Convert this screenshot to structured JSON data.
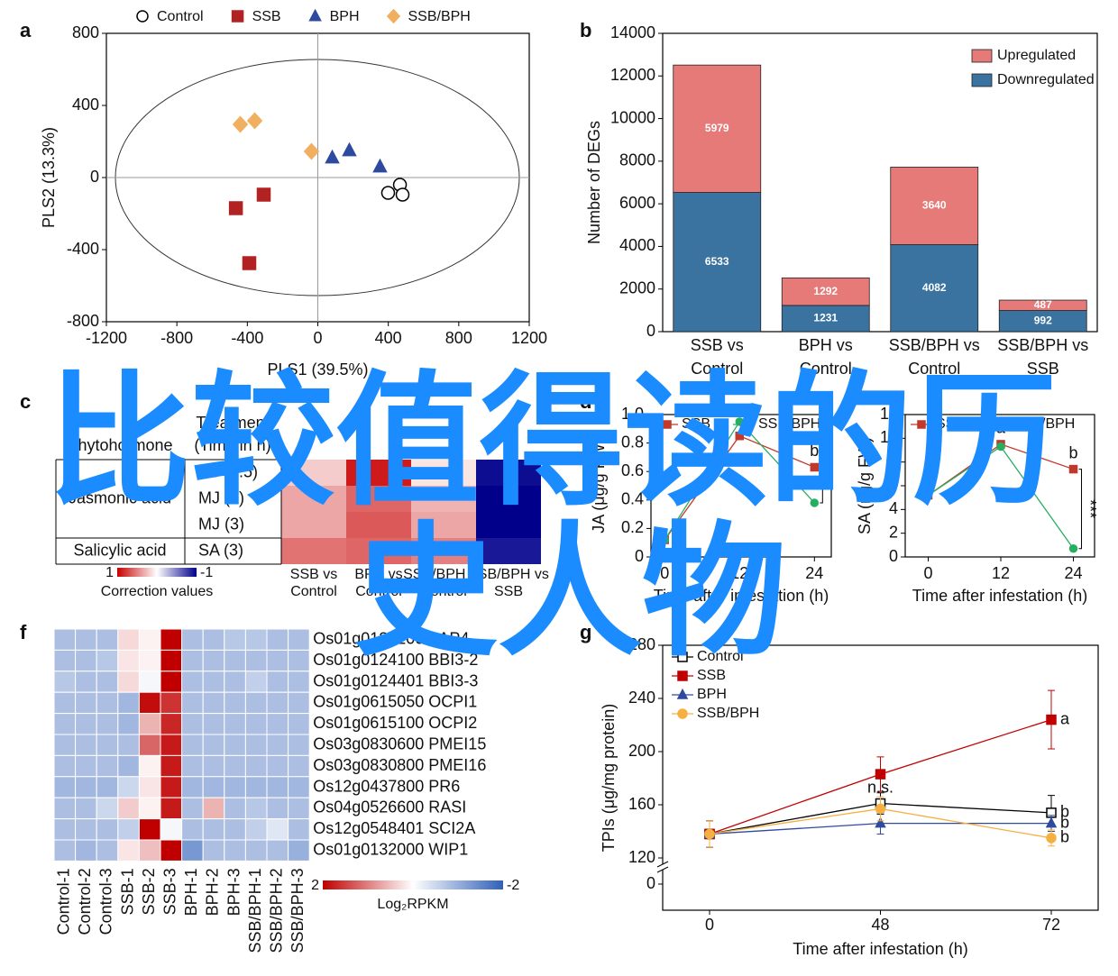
{
  "chart_data": [
    {
      "panel": "a",
      "type": "scatter",
      "xlabel": "PLS1 (39.5%)",
      "ylabel": "PLS2 (13.3%)",
      "xlim": [
        -1200,
        1200
      ],
      "ylim": [
        -800,
        800
      ],
      "xticks": [
        -1200,
        -800,
        -400,
        0,
        400,
        800,
        1200
      ],
      "yticks": [
        -800,
        -400,
        0,
        400,
        800
      ],
      "zero_lines": true,
      "legend": "top",
      "series": [
        {
          "name": "Control",
          "color": "#000000",
          "marker": "circle",
          "filled": false,
          "x": [
            466,
            399,
            481
          ],
          "values": [
            -40,
            -85,
            -95
          ]
        },
        {
          "name": "SSB",
          "color": "#b22222",
          "marker": "square",
          "filled": true,
          "x": [
            -307,
            -465,
            -389
          ],
          "values": [
            -95,
            -170,
            -475
          ]
        },
        {
          "name": "BPH",
          "color": "#2e4a9e",
          "marker": "triangle",
          "filled": true,
          "x": [
            82,
            179,
            353
          ],
          "values": [
            110,
            150,
            60
          ]
        },
        {
          "name": "SSB/BPH",
          "color": "#f0b060",
          "marker": "diamond",
          "filled": true,
          "x": [
            -440,
            -358,
            -36
          ],
          "values": [
            295,
            315,
            145
          ]
        }
      ]
    },
    {
      "panel": "b",
      "type": "bar",
      "stacked": true,
      "ylabel": "Number of DEGs",
      "categories": [
        "SSB vs Control",
        "BPH vs Control",
        "SSB/BPH vs Control",
        "SSB/BPH vs SSB"
      ],
      "ylim": [
        0,
        14000
      ],
      "yticks": [
        0,
        2000,
        4000,
        6000,
        8000,
        10000,
        12000,
        14000
      ],
      "legend": "upper right",
      "series": [
        {
          "name": "Downregulated",
          "color": "#3a72a0",
          "values": [
            6533,
            1231,
            4082,
            992
          ]
        },
        {
          "name": "Upregulated",
          "color": "#e57a78",
          "values": [
            5979,
            1292,
            3640,
            487
          ]
        }
      ]
    },
    {
      "panel": "c",
      "type": "heatmap",
      "headers": [
        "Phytohormone",
        "Treatment (Time in h)"
      ],
      "columns": [
        "SSB vs Control",
        "BPH vs Control",
        "SSB/BPH vs Control",
        "SSB/BPH vs SSB"
      ],
      "groups": [
        {
          "name": "Jasmonic acid",
          "treatments": [
            "MJ (0.5)",
            "MJ (1)",
            "MJ (3)"
          ],
          "values": [
            [
              0.2,
              0.9,
              0.1,
              -0.95
            ],
            [
              0.35,
              0.6,
              0.3,
              -1
            ],
            [
              0.35,
              0.65,
              0.35,
              -1
            ]
          ]
        },
        {
          "name": "Salicylic acid",
          "treatments": [
            "SA (3)"
          ],
          "values": [
            [
              0.55,
              0.6,
              0.5,
              -0.9
            ]
          ]
        }
      ],
      "zlim": [
        -1,
        1
      ],
      "low_color": "#00008b",
      "high_color": "#c80000",
      "colorbar": {
        "label": "Correction values",
        "ticks": [
          1,
          -1
        ]
      }
    },
    {
      "panel": "d",
      "type": "line",
      "xlabel": "Time after infestation (h)",
      "ylabel": "JA (μg/g FW)",
      "x": [
        0,
        12,
        24
      ],
      "xlim": [
        -2.2,
        26.7
      ],
      "xticks": [
        0,
        12,
        24
      ],
      "ylim": [
        0,
        1.0
      ],
      "yticks": [
        0,
        0.2,
        0.4,
        0.6,
        0.8,
        {
          "value": 1.0,
          "label": "1.0"
        }
      ],
      "legend": "top",
      "series": [
        {
          "name": "SSB",
          "color": "#c0392b",
          "marker": "square",
          "filled": true,
          "values": [
            0.12,
            0.85,
            0.63
          ]
        },
        {
          "name": "SSB/BPH",
          "color": "#27ae60",
          "marker": "circle",
          "filled": true,
          "values": [
            0.12,
            0.95,
            0.38
          ]
        }
      ],
      "annotations": [
        {
          "text": "b",
          "series": 0,
          "point": 2,
          "where": "above"
        },
        {
          "text": "*",
          "between": [
            0,
            1
          ],
          "point": 2
        }
      ]
    },
    {
      "panel": "e",
      "type": "line",
      "xlabel": "Time after infestation (h)",
      "ylabel": "SA (ng/g FW)",
      "x": [
        0,
        12,
        24
      ],
      "xlim": [
        -3.8,
        27.5
      ],
      "xticks": [
        0,
        12,
        24
      ],
      "ylim": [
        0,
        12
      ],
      "yticks": [
        0,
        2,
        4,
        6,
        8,
        10,
        12
      ],
      "legend": "top",
      "series": [
        {
          "name": "SSB",
          "color": "#c0392b",
          "marker": "square",
          "filled": true,
          "values": [
            5.2,
            9.5,
            7.4
          ]
        },
        {
          "name": "SSB/BPH",
          "color": "#27ae60",
          "marker": "circle",
          "filled": true,
          "values": [
            5.2,
            9.3,
            0.7
          ]
        }
      ],
      "annotations": [
        {
          "text": "c",
          "series": 0,
          "point": 0,
          "where": "above"
        },
        {
          "text": "a",
          "series": 0,
          "point": 1,
          "where": "above"
        },
        {
          "text": "b",
          "series": 0,
          "point": 2,
          "where": "above"
        },
        {
          "text": "***",
          "between": [
            0,
            1
          ],
          "point": 2,
          "orientation": "vertical"
        }
      ]
    },
    {
      "panel": "f",
      "type": "heatmap",
      "rows": [
        "Os01g0124200 AAP4",
        "Os01g0124100 BBI3-2",
        "Os01g0124401 BBI3-3",
        "Os01g0615050 OCPI1",
        "Os01g0615100 OCPI2",
        "Os03g0830600 PMEI15",
        "Os03g0830800 PMEI16",
        "Os12g0437800 PR6",
        "Os04g0526600 RASI",
        "Os12g0548401 SCI2A",
        "Os01g0132000 WIP1"
      ],
      "columns": [
        "Control-1",
        "Control-2",
        "Control-3",
        "SSB-1",
        "SSB-2",
        "SSB-3",
        "BPH-1",
        "BPH-2",
        "BPH-3",
        "SSB/BPH-1",
        "SSB/BPH-2",
        "SSB/BPH-3"
      ],
      "values": [
        [
          -0.8,
          -0.8,
          -0.8,
          0.3,
          0.1,
          2,
          -0.8,
          -0.8,
          -0.7,
          -0.7,
          -0.8,
          -0.8
        ],
        [
          -0.8,
          -0.8,
          -0.7,
          0.2,
          0.1,
          2,
          -0.8,
          -0.8,
          -0.8,
          -0.8,
          -0.8,
          -0.8
        ],
        [
          -0.7,
          -0.8,
          -0.8,
          0.3,
          -0.1,
          2,
          -0.8,
          -0.8,
          -0.8,
          -0.6,
          -0.8,
          -0.8
        ],
        [
          -0.8,
          -0.8,
          -0.8,
          -0.9,
          1.9,
          1.6,
          -0.8,
          -0.8,
          -0.8,
          -0.8,
          -0.8,
          -0.8
        ],
        [
          -0.8,
          -0.8,
          -0.8,
          -0.9,
          0.6,
          1.7,
          -0.8,
          -0.8,
          -0.8,
          -0.8,
          -0.8,
          -0.8
        ],
        [
          -0.8,
          -0.8,
          -0.8,
          -0.8,
          1.2,
          1.8,
          -0.8,
          -0.8,
          -0.8,
          -0.8,
          -0.8,
          -0.8
        ],
        [
          -0.8,
          -0.8,
          -0.8,
          -0.9,
          0.1,
          1.8,
          -0.8,
          -0.8,
          -0.8,
          -0.8,
          -0.8,
          -0.8
        ],
        [
          -0.9,
          -0.9,
          -0.9,
          -0.5,
          0.2,
          1.8,
          -0.9,
          -0.9,
          -0.9,
          -0.9,
          -0.9,
          -0.9
        ],
        [
          -0.8,
          -0.8,
          -0.5,
          0.4,
          0.1,
          1.8,
          -0.8,
          0.6,
          -0.8,
          -0.7,
          -0.8,
          -0.8
        ],
        [
          -0.8,
          -0.8,
          -0.8,
          -0.6,
          2,
          -0.1,
          -0.8,
          -0.8,
          -0.8,
          -0.6,
          -0.3,
          -0.8
        ],
        [
          -0.8,
          -0.9,
          -0.8,
          0.2,
          0.5,
          2,
          -1.3,
          -0.8,
          -0.8,
          -0.8,
          -0.8,
          -1
        ]
      ],
      "zlim": [
        -2,
        2
      ],
      "low_color": "#3060b8",
      "high_color": "#c00000",
      "colorbar": {
        "label": "Log₂RPKM",
        "ticks": [
          2,
          -2
        ]
      }
    },
    {
      "panel": "g",
      "type": "line",
      "xlabel": "Time after infestation (h)",
      "ylabel": "TPIs (μg/mg protein)",
      "categories": [
        "0",
        "48",
        "72"
      ],
      "ylim": [
        120,
        280
      ],
      "yticks": [
        0,
        120,
        160,
        200,
        240,
        280
      ],
      "y_axis_break": true,
      "legend": "upper left",
      "series": [
        {
          "name": "Control",
          "color": "#000000",
          "marker": "square",
          "filled": false,
          "values": [
            138,
            161,
            154
          ],
          "errors": [
            10,
            8,
            13
          ]
        },
        {
          "name": "SSB",
          "color": "#c00000",
          "marker": "square",
          "filled": true,
          "values": [
            138,
            183,
            224
          ],
          "errors": [
            10,
            13,
            22
          ]
        },
        {
          "name": "BPH",
          "color": "#2e4a9e",
          "marker": "triangle",
          "filled": true,
          "values": [
            138,
            146,
            146
          ],
          "errors": [
            10,
            8,
            6
          ]
        },
        {
          "name": "SSB/BPH",
          "color": "#f5b041",
          "marker": "circle",
          "filled": true,
          "values": [
            138,
            157,
            135
          ],
          "errors": [
            10,
            9,
            6
          ]
        }
      ],
      "annotations": [
        {
          "text": "a",
          "series": 1,
          "point": 2,
          "where": "right"
        },
        {
          "text": "b",
          "series": 0,
          "point": 2,
          "where": "right"
        },
        {
          "text": "b",
          "series": 2,
          "point": 2,
          "where": "right"
        },
        {
          "text": "b",
          "series": 3,
          "point": 2,
          "where": "right"
        },
        {
          "text": "n.s.",
          "series": 0,
          "point": 1,
          "where": "above"
        }
      ]
    }
  ],
  "overlay_text": [
    "比较值得读的历",
    "史人物"
  ]
}
